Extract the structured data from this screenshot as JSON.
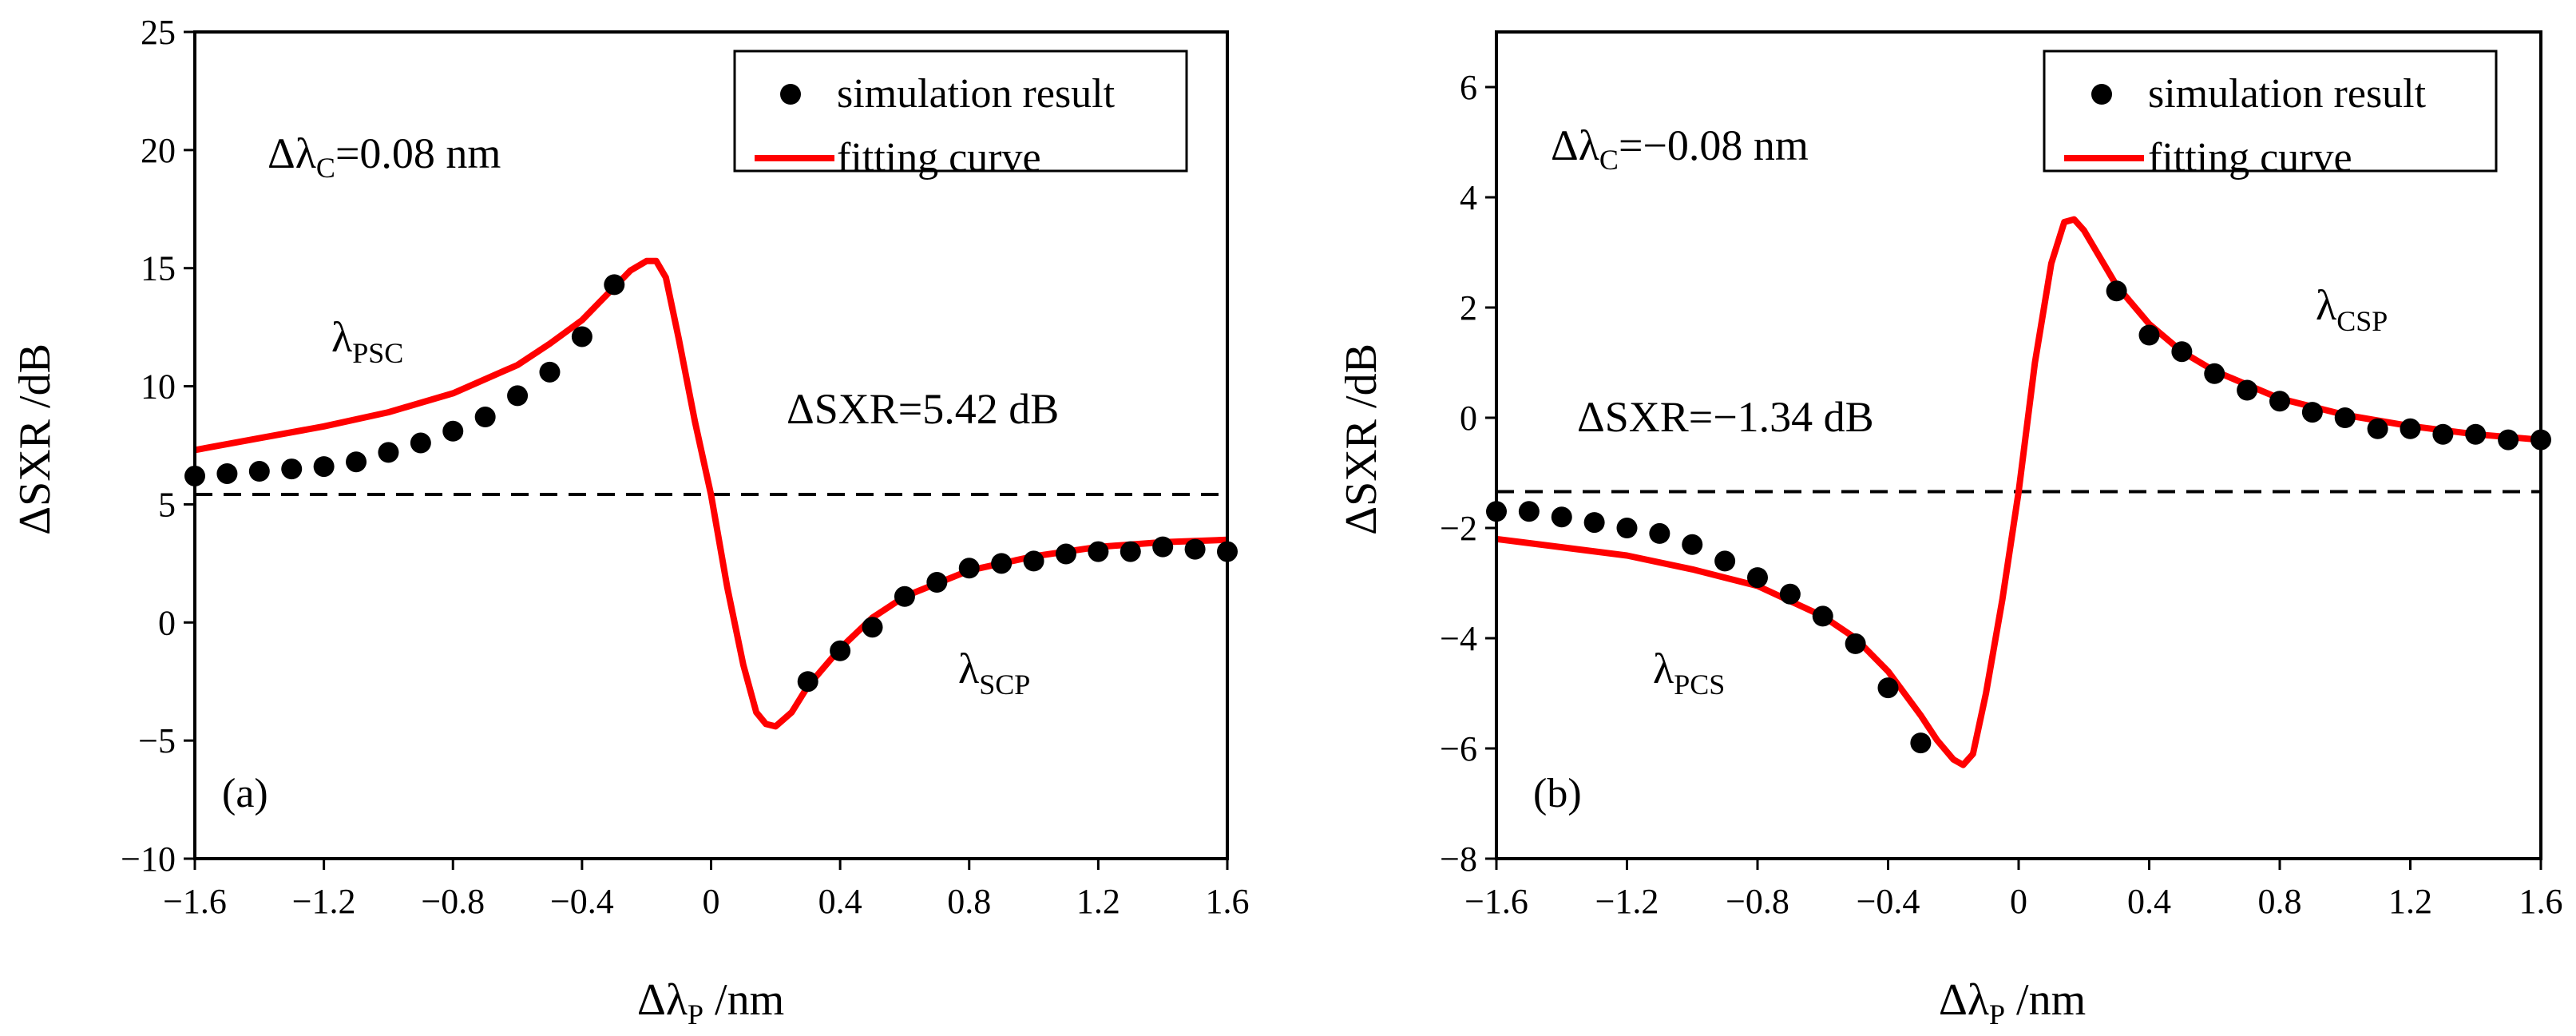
{
  "chart_data": [
    {
      "type": "scatter",
      "panel_label": "(a)",
      "xlabel": {
        "main": "Δλ",
        "sub": "P",
        "tail": " /nm"
      },
      "ylabel": "ΔSXR /dB",
      "xlim": [
        -1.6,
        1.6
      ],
      "ylim": [
        -10,
        25
      ],
      "x_tick_labels": [
        "−1.6",
        "−1.2",
        "−0.8",
        "−0.4",
        "0",
        "0.4",
        "0.8",
        "1.2",
        "1.6"
      ],
      "x_tick_values": [
        -1.6,
        -1.2,
        -0.8,
        -0.4,
        0,
        0.4,
        0.8,
        1.2,
        1.6
      ],
      "y_tick_labels": [
        "−10",
        "−5",
        "0",
        "5",
        "10",
        "15",
        "20",
        "25"
      ],
      "y_tick_values": [
        -10,
        -5,
        0,
        5,
        10,
        15,
        20,
        25
      ],
      "legend": {
        "position": "top-right",
        "scatter_label": "simulation result",
        "curve_label": "fitting curve"
      },
      "annotations": {
        "delta_c": {
          "main": "Δλ",
          "sub": "C",
          "tail": "=0.08 nm"
        },
        "left_branch": {
          "main": "λ",
          "sub": "PSC"
        },
        "right_branch": {
          "main": "λ",
          "sub": "SCP"
        },
        "dsxr": "ΔSXR=5.42 dB"
      },
      "reference_line": 5.42,
      "series": [
        {
          "name": "simulation result",
          "x": [
            -1.6,
            -1.5,
            -1.4,
            -1.3,
            -1.2,
            -1.1,
            -1.0,
            -0.9,
            -0.8,
            -0.7,
            -0.6,
            -0.5,
            -0.4,
            -0.3,
            0.3,
            0.4,
            0.5,
            0.6,
            0.7,
            0.8,
            0.9,
            1.0,
            1.1,
            1.2,
            1.3,
            1.4,
            1.5,
            1.6
          ],
          "y": [
            6.2,
            6.3,
            6.4,
            6.5,
            6.6,
            6.8,
            7.2,
            7.6,
            8.1,
            8.7,
            9.6,
            10.6,
            12.1,
            14.3,
            -2.5,
            -1.2,
            -0.2,
            1.1,
            1.7,
            2.3,
            2.5,
            2.6,
            2.9,
            3.0,
            3.0,
            3.2,
            3.1,
            3.0
          ]
        },
        {
          "name": "fitting curve",
          "x": [
            -1.6,
            -1.4,
            -1.2,
            -1.0,
            -0.8,
            -0.6,
            -0.5,
            -0.4,
            -0.3,
            -0.25,
            -0.2,
            -0.17,
            -0.14,
            -0.1,
            -0.05,
            0,
            0.05,
            0.1,
            0.14,
            0.17,
            0.2,
            0.25,
            0.3,
            0.4,
            0.5,
            0.6,
            0.8,
            1.0,
            1.2,
            1.4,
            1.6
          ],
          "y": [
            7.3,
            7.8,
            8.3,
            8.9,
            9.7,
            10.9,
            11.8,
            12.8,
            14.2,
            14.9,
            15.3,
            15.3,
            14.6,
            12.0,
            8.5,
            5.4,
            1.5,
            -1.8,
            -3.8,
            -4.3,
            -4.4,
            -3.8,
            -2.7,
            -1.1,
            0.2,
            1.1,
            2.2,
            2.8,
            3.2,
            3.4,
            3.5
          ]
        }
      ]
    },
    {
      "type": "scatter",
      "panel_label": "(b)",
      "xlabel": {
        "main": "Δλ",
        "sub": "P",
        "tail": " /nm"
      },
      "ylabel": "ΔSXR /dB",
      "xlim": [
        -1.6,
        1.6
      ],
      "ylim": [
        -8,
        7
      ],
      "x_tick_labels": [
        "−1.6",
        "−1.2",
        "−0.8",
        "−0.4",
        "0",
        "0.4",
        "0.8",
        "1.2",
        "1.6"
      ],
      "x_tick_values": [
        -1.6,
        -1.2,
        -0.8,
        -0.4,
        0,
        0.4,
        0.8,
        1.2,
        1.6
      ],
      "y_tick_labels": [
        "−8",
        "−6",
        "−4",
        "−2",
        "0",
        "2",
        "4",
        "6"
      ],
      "y_tick_values": [
        -8,
        -6,
        -4,
        -2,
        0,
        2,
        4,
        6
      ],
      "legend": {
        "position": "top-right",
        "scatter_label": "simulation result",
        "curve_label": "fitting curve"
      },
      "annotations": {
        "delta_c": {
          "main": "Δλ",
          "sub": "C",
          "tail": "=−0.08 nm"
        },
        "left_branch": {
          "main": "λ",
          "sub": "PCS"
        },
        "right_branch": {
          "main": "λ",
          "sub": "CSP"
        },
        "dsxr": "ΔSXR=−1.34 dB"
      },
      "reference_line": -1.34,
      "series": [
        {
          "name": "simulation result",
          "x": [
            -1.6,
            -1.5,
            -1.4,
            -1.3,
            -1.2,
            -1.1,
            -1.0,
            -0.9,
            -0.8,
            -0.7,
            -0.6,
            -0.5,
            -0.4,
            -0.3,
            0.3,
            0.4,
            0.5,
            0.6,
            0.7,
            0.8,
            0.9,
            1.0,
            1.1,
            1.2,
            1.3,
            1.4,
            1.5,
            1.6
          ],
          "y": [
            -1.7,
            -1.7,
            -1.8,
            -1.9,
            -2.0,
            -2.1,
            -2.3,
            -2.6,
            -2.9,
            -3.2,
            -3.6,
            -4.1,
            -4.9,
            -5.9,
            2.3,
            1.5,
            1.2,
            0.8,
            0.5,
            0.3,
            0.1,
            0.0,
            -0.2,
            -0.2,
            -0.3,
            -0.3,
            -0.4,
            -0.4
          ]
        },
        {
          "name": "fitting curve",
          "x": [
            -1.6,
            -1.4,
            -1.2,
            -1.0,
            -0.8,
            -0.6,
            -0.5,
            -0.4,
            -0.3,
            -0.25,
            -0.2,
            -0.17,
            -0.14,
            -0.1,
            -0.05,
            0,
            0.05,
            0.1,
            0.14,
            0.17,
            0.2,
            0.25,
            0.3,
            0.4,
            0.5,
            0.6,
            0.8,
            1.0,
            1.2,
            1.4,
            1.6
          ],
          "y": [
            -2.2,
            -2.35,
            -2.5,
            -2.75,
            -3.05,
            -3.6,
            -4.0,
            -4.6,
            -5.4,
            -5.85,
            -6.2,
            -6.3,
            -6.1,
            -5.0,
            -3.3,
            -1.34,
            1.0,
            2.8,
            3.55,
            3.6,
            3.4,
            2.9,
            2.4,
            1.7,
            1.2,
            0.85,
            0.35,
            0.05,
            -0.15,
            -0.3,
            -0.4
          ]
        }
      ]
    }
  ]
}
